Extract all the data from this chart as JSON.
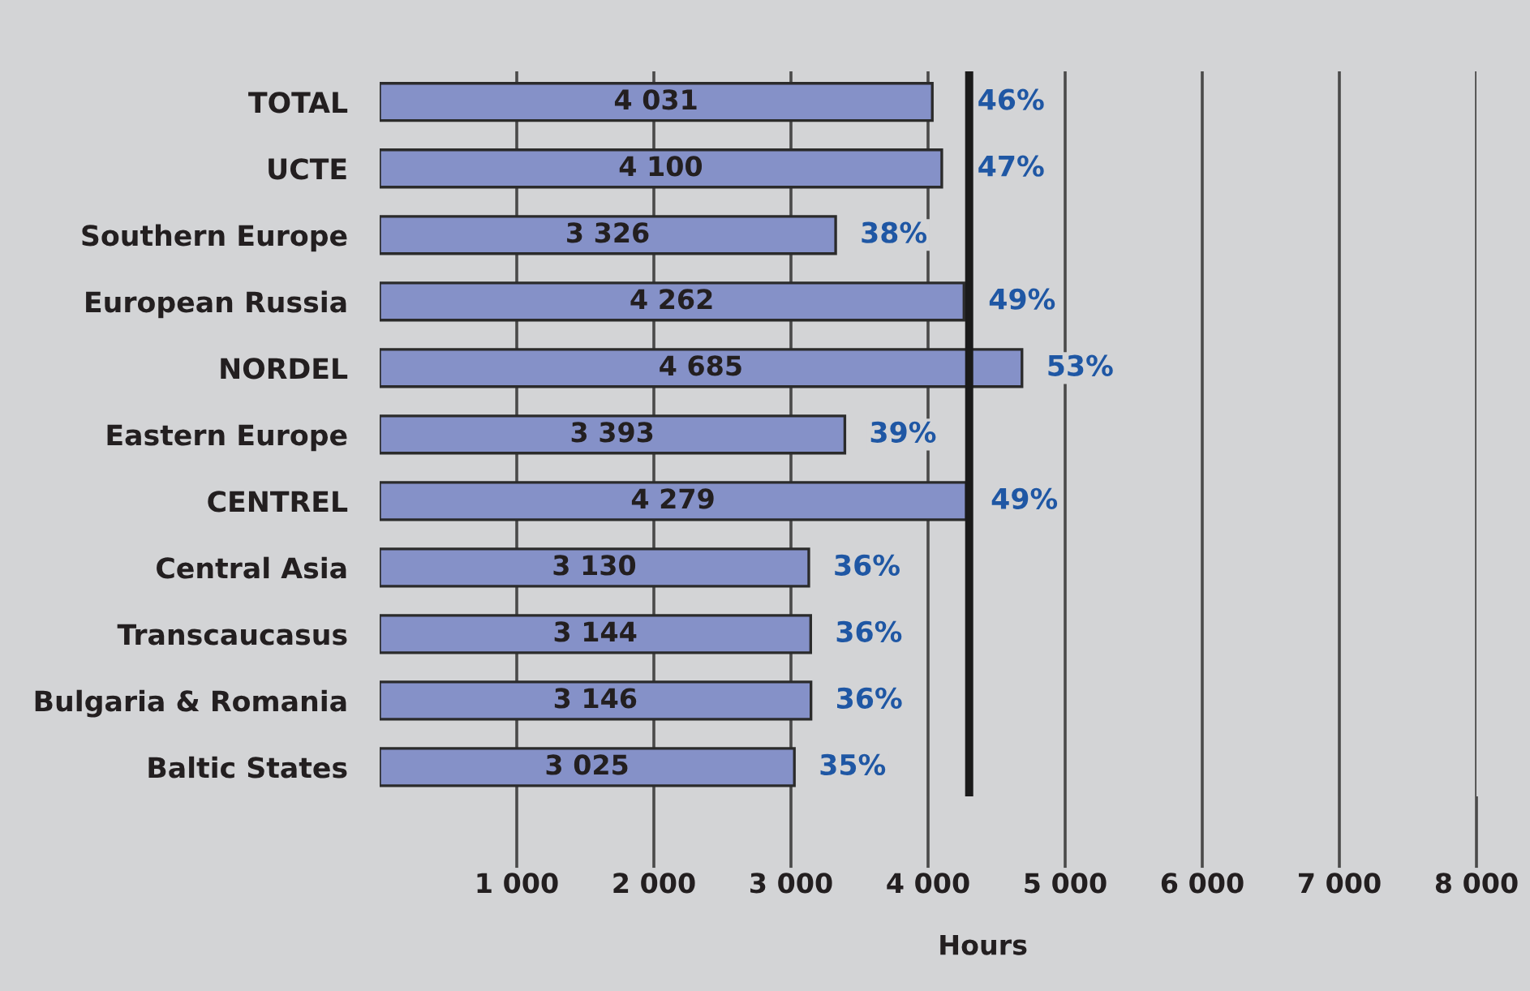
{
  "chart_data": {
    "type": "bar",
    "orientation": "horizontal",
    "categories": [
      "TOTAL",
      "UCTE",
      "Southern Europe",
      "European Russia",
      "NORDEL",
      "Eastern Europe",
      "CENTREL",
      "Central Asia",
      "Transcaucasus",
      "Bulgaria & Romania",
      "Baltic States"
    ],
    "values": [
      4031,
      4100,
      3326,
      4262,
      4685,
      3393,
      4279,
      3130,
      3144,
      3146,
      3025
    ],
    "value_labels": [
      "4 031",
      "4 100",
      "3 326",
      "4 262",
      "4 685",
      "3 393",
      "4 279",
      "3 130",
      "3 144",
      "3 146",
      "3 025"
    ],
    "color": "#8591c8",
    "xlabel": "Hours",
    "xlim": [
      0,
      8000
    ],
    "xticks": [
      {
        "value": 1000,
        "label": "1 000"
      },
      {
        "value": 2000,
        "label": "2 000"
      },
      {
        "value": 3000,
        "label": "3 000"
      },
      {
        "value": 4000,
        "label": "4 000"
      },
      {
        "value": 5000,
        "label": "5 000"
      },
      {
        "value": 6000,
        "label": "6 000"
      },
      {
        "value": 7000,
        "label": "7 000"
      },
      {
        "value": 8000,
        "label": "8 000"
      }
    ],
    "grid": "x",
    "ref_lines": [
      {
        "axis": "x",
        "value": 4300,
        "color": "#1a1a1a"
      }
    ],
    "annotations": [
      {
        "text": "46%",
        "x": 4031,
        "y": "TOTAL"
      },
      {
        "text": "47%",
        "x": 4100,
        "y": "UCTE"
      },
      {
        "text": "38%",
        "x": 3326,
        "y": "Southern Europe"
      },
      {
        "text": "49%",
        "x": 4262,
        "y": "European Russia"
      },
      {
        "text": "53%",
        "x": 4685,
        "y": "NORDEL"
      },
      {
        "text": "39%",
        "x": 3393,
        "y": "Eastern Europe"
      },
      {
        "text": "49%",
        "x": 4279,
        "y": "CENTREL"
      },
      {
        "text": "36%",
        "x": 3130,
        "y": "Central Asia"
      },
      {
        "text": "36%",
        "x": 3144,
        "y": "Transcaucasus"
      },
      {
        "text": "36%",
        "x": 3146,
        "y": "Bulgaria & Romania"
      },
      {
        "text": "35%",
        "x": 3025,
        "y": "Baltic States"
      }
    ]
  }
}
